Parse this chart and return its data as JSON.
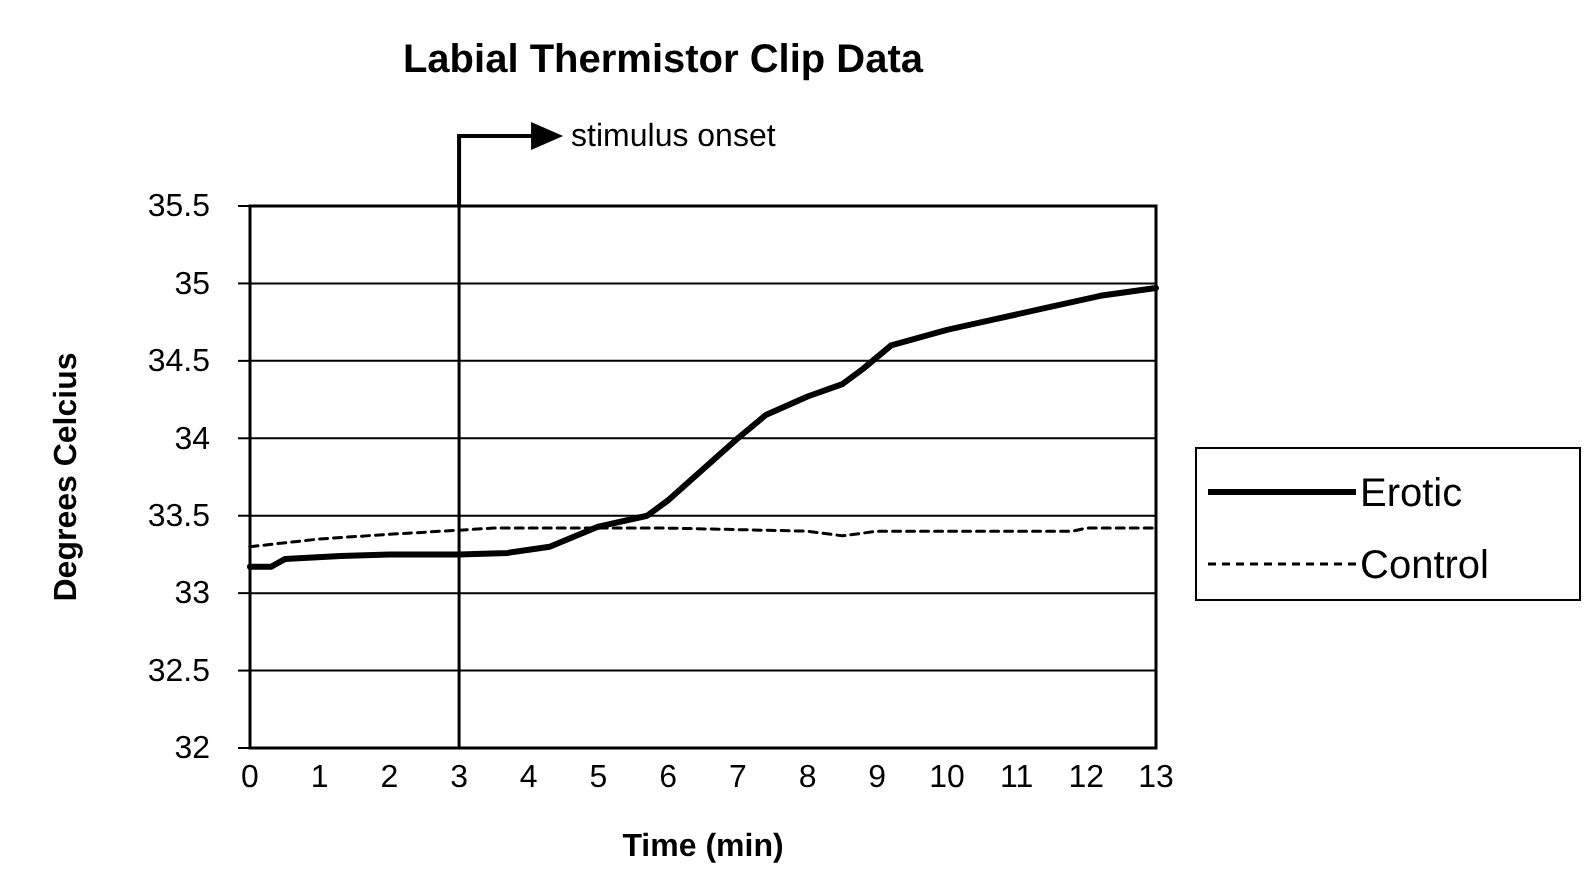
{
  "chart_data": {
    "type": "line",
    "title": "Labial Thermistor Clip Data",
    "xlabel": "Time (min)",
    "ylabel": "Degrees Celcius",
    "xlim": [
      0,
      13
    ],
    "xticks": [
      0,
      1,
      2,
      3,
      4,
      5,
      6,
      7,
      8,
      9,
      10,
      11,
      12,
      13
    ],
    "ylim": [
      32,
      35.5
    ],
    "yticks": [
      32,
      32.5,
      33,
      33.5,
      34,
      34.5,
      35,
      35.5
    ],
    "grid": "y",
    "legend": "right",
    "marker": "none",
    "ref_lines": [
      {
        "axis": "x",
        "value": 3,
        "label": "stimulus onset",
        "color": "#000000"
      }
    ],
    "series": [
      {
        "name": "Erotic",
        "color": "#000000",
        "line_style": "solid",
        "x": [
          0,
          0.3,
          0.5,
          1.3,
          2,
          3,
          3.7,
          4.3,
          5,
          5.7,
          6,
          6.5,
          7,
          7.4,
          8,
          8.5,
          8.8,
          9.2,
          10,
          10.5,
          11.5,
          12.2,
          13
        ],
        "values": [
          33.17,
          33.17,
          33.22,
          33.24,
          33.25,
          33.25,
          33.26,
          33.3,
          33.43,
          33.5,
          33.6,
          33.8,
          34,
          34.15,
          34.27,
          34.35,
          34.45,
          34.6,
          34.7,
          34.75,
          34.85,
          34.92,
          34.97
        ]
      },
      {
        "name": "Control",
        "color": "#000000",
        "line_style": "dashed",
        "x": [
          0,
          1,
          2,
          3.5,
          5,
          6,
          7,
          8,
          8.5,
          9,
          10,
          11,
          11.8,
          12,
          13
        ],
        "values": [
          33.3,
          33.35,
          33.38,
          33.42,
          33.42,
          33.42,
          33.41,
          33.4,
          33.37,
          33.4,
          33.4,
          33.4,
          33.4,
          33.42,
          33.42
        ]
      }
    ]
  }
}
